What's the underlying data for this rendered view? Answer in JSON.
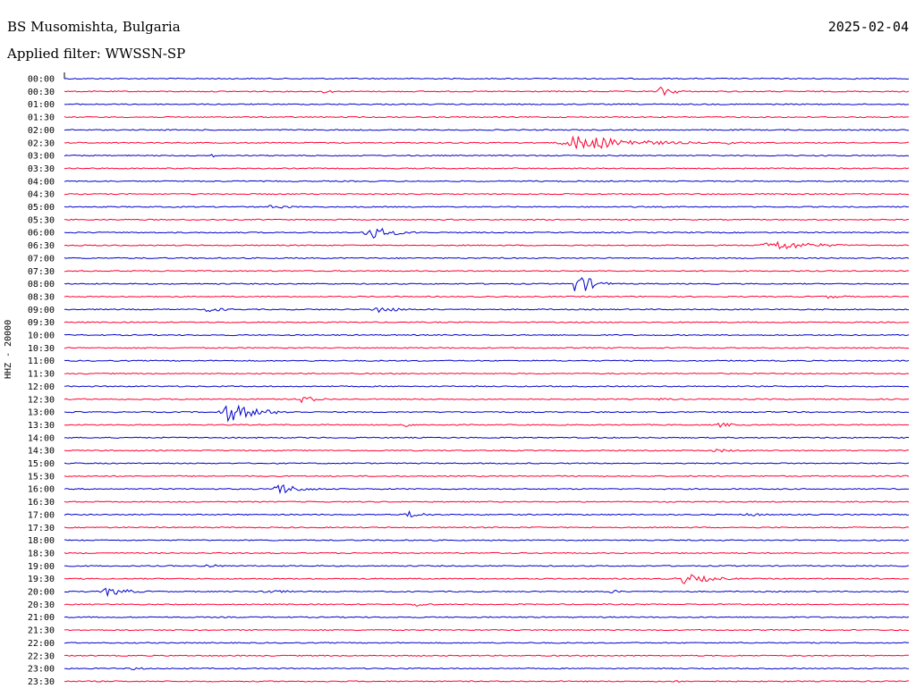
{
  "header": {
    "station": "BS Musomishta, Bulgaria",
    "date": "2025-02-04",
    "filter": "Applied filter: WWSSN-SP"
  },
  "chart_data": {
    "type": "line",
    "ylabel": "HHZ - 20000",
    "row_labels": [
      "00:00",
      "00:30",
      "01:00",
      "01:30",
      "02:00",
      "02:30",
      "03:00",
      "03:30",
      "04:00",
      "04:30",
      "05:00",
      "05:30",
      "06:00",
      "06:30",
      "07:00",
      "07:30",
      "08:00",
      "08:30",
      "09:00",
      "09:30",
      "10:00",
      "10:30",
      "11:00",
      "11:30",
      "12:00",
      "12:30",
      "13:00",
      "13:30",
      "14:00",
      "14:30",
      "15:00",
      "15:30",
      "16:00",
      "16:30",
      "17:00",
      "17:30",
      "18:00",
      "18:30",
      "19:00",
      "19:30",
      "20:00",
      "20:30",
      "21:00",
      "21:30",
      "22:00",
      "22:30",
      "23:00",
      "23:30"
    ],
    "colors": {
      "even": "#0000cc",
      "odd": "#ff0033"
    },
    "events": [
      {
        "row": 1,
        "start": 0.7,
        "dur": 0.05,
        "amp": 6
      },
      {
        "row": 1,
        "start": 0.3,
        "dur": 0.05,
        "amp": 2
      },
      {
        "row": 5,
        "start": 0.58,
        "dur": 0.2,
        "amp": 9
      },
      {
        "row": 5,
        "start": 0.78,
        "dur": 0.05,
        "amp": 2
      },
      {
        "row": 6,
        "start": 0.17,
        "dur": 0.03,
        "amp": 2
      },
      {
        "row": 10,
        "start": 0.23,
        "dur": 0.11,
        "amp": 2
      },
      {
        "row": 12,
        "start": 0.35,
        "dur": 0.08,
        "amp": 8
      },
      {
        "row": 13,
        "start": 0.82,
        "dur": 0.14,
        "amp": 6
      },
      {
        "row": 16,
        "start": 0.6,
        "dur": 0.05,
        "amp": 15
      },
      {
        "row": 17,
        "start": 0.89,
        "dur": 0.09,
        "amp": 2
      },
      {
        "row": 18,
        "start": 0.16,
        "dur": 0.07,
        "amp": 3
      },
      {
        "row": 18,
        "start": 0.36,
        "dur": 0.08,
        "amp": 4
      },
      {
        "row": 25,
        "start": 0.27,
        "dur": 0.07,
        "amp": 4
      },
      {
        "row": 25,
        "start": 0.7,
        "dur": 0.05,
        "amp": 2
      },
      {
        "row": 26,
        "start": 0.18,
        "dur": 0.1,
        "amp": 11
      },
      {
        "row": 27,
        "start": 0.4,
        "dur": 0.02,
        "amp": 4
      },
      {
        "row": 27,
        "start": 0.77,
        "dur": 0.05,
        "amp": 3
      },
      {
        "row": 29,
        "start": 0.76,
        "dur": 0.09,
        "amp": 2
      },
      {
        "row": 32,
        "start": 0.24,
        "dur": 0.08,
        "amp": 7
      },
      {
        "row": 34,
        "start": 0.4,
        "dur": 0.06,
        "amp": 4
      },
      {
        "row": 34,
        "start": 0.8,
        "dur": 0.08,
        "amp": 2
      },
      {
        "row": 38,
        "start": 0.16,
        "dur": 0.05,
        "amp": 3
      },
      {
        "row": 39,
        "start": 0.72,
        "dur": 0.1,
        "amp": 6
      },
      {
        "row": 40,
        "start": 0.04,
        "dur": 0.08,
        "amp": 5
      },
      {
        "row": 40,
        "start": 0.22,
        "dur": 0.12,
        "amp": 2
      },
      {
        "row": 40,
        "start": 0.64,
        "dur": 0.05,
        "amp": 2
      },
      {
        "row": 41,
        "start": 0.41,
        "dur": 0.05,
        "amp": 3
      },
      {
        "row": 46,
        "start": 0.07,
        "dur": 0.06,
        "amp": 2
      },
      {
        "row": 47,
        "start": 0.72,
        "dur": 0.04,
        "amp": 2
      }
    ]
  }
}
